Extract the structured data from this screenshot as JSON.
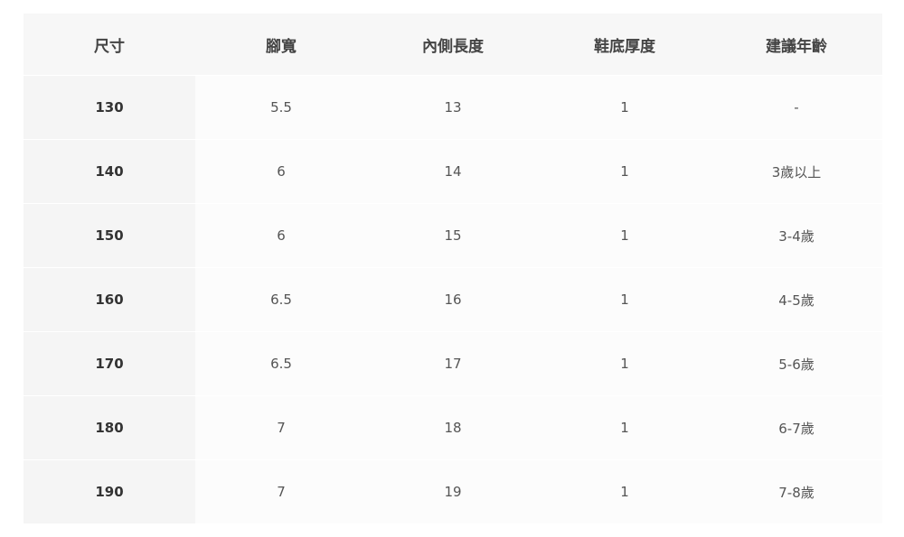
{
  "table": {
    "headers": [
      "尺寸",
      "腳寬",
      "內側長度",
      "鞋底厚度",
      "建議年齡"
    ],
    "rows": [
      [
        "130",
        "5.5",
        "13",
        "1",
        "-"
      ],
      [
        "140",
        "6",
        "14",
        "1",
        "3歲以上"
      ],
      [
        "150",
        "6",
        "15",
        "1",
        "3-4歲"
      ],
      [
        "160",
        "6.5",
        "16",
        "1",
        "4-5歲"
      ],
      [
        "170",
        "6.5",
        "17",
        "1",
        "5-6歲"
      ],
      [
        "180",
        "7",
        "18",
        "1",
        "6-7歲"
      ],
      [
        "190",
        "7",
        "19",
        "1",
        "7-8歲"
      ]
    ]
  }
}
